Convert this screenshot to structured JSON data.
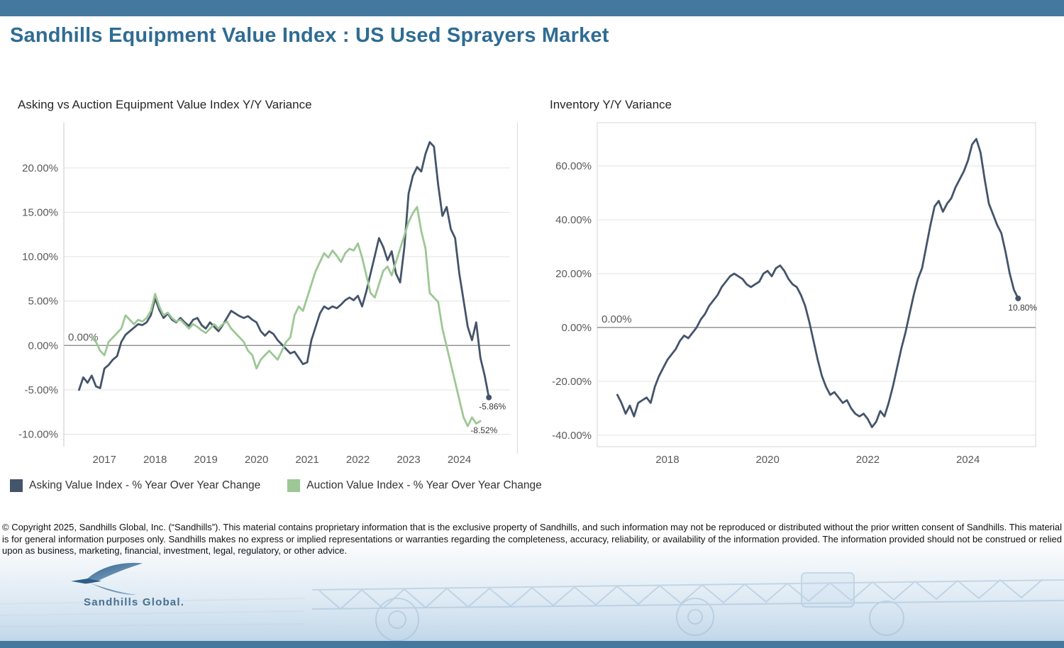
{
  "page": {
    "title": "Sandhills Equipment Value Index : US Used Sprayers Market"
  },
  "legend": [
    {
      "label": "Asking Value Index - % Year Over Year Change",
      "color": "#44546A"
    },
    {
      "label": "Auction Value Index - % Year Over Year Change",
      "color": "#9DC795"
    }
  ],
  "footer": {
    "copyright": "© Copyright 2025, Sandhills Global, Inc. (“Sandhills”). This material contains proprietary information that is the exclusive property of Sandhills, and such information may not be reproduced or distributed without the prior written consent of Sandhills. This material is for general information purposes only. Sandhills makes no express or implied representations or warranties regarding the completeness, accuracy, reliability, or availability of the information provided. The information provided should not be construed or relied upon as business, marketing, financial, investment, legal, regulatory, or other advice.",
    "logo_text": "Sandhills Global."
  },
  "chart_data": [
    {
      "type": "line",
      "title": "Asking vs Auction Equipment Value Index Y/Y Variance",
      "xlabel": "",
      "ylabel": "",
      "xlim": [
        2016.2,
        2025.0
      ],
      "ylim": [
        -11.4,
        25.1
      ],
      "grid": true,
      "border": false,
      "zero_label": "0.00%",
      "yticks": [
        20,
        15,
        10,
        5,
        0,
        -5,
        -10
      ],
      "ytick_labels": [
        "20.00%",
        "15.00%",
        "10.00%",
        "5.00%",
        "0.00%",
        "-5.00%",
        "-10.00%"
      ],
      "xticks": [
        2017,
        2018,
        2019,
        2020,
        2021,
        2022,
        2023,
        2024
      ],
      "xtick_labels": [
        "2017",
        "2018",
        "2019",
        "2020",
        "2021",
        "2022",
        "2023",
        "2024"
      ],
      "series": [
        {
          "name": "Asking Value Index - % Year Over Year Change",
          "slug": "asking-value-line",
          "color": "#44546A",
          "end_label": "-5.86%",
          "end_dot": true,
          "x_start": 2016.5,
          "x_step": 0.083333,
          "y": [
            -5.0,
            -3.6,
            -4.2,
            -3.4,
            -4.6,
            -4.8,
            -2.6,
            -2.2,
            -1.6,
            -1.2,
            0.4,
            1.2,
            1.6,
            2.0,
            2.4,
            2.3,
            2.6,
            3.4,
            5.3,
            4.0,
            3.1,
            3.6,
            2.9,
            2.6,
            3.1,
            2.6,
            2.2,
            2.9,
            3.1,
            2.3,
            1.9,
            2.6,
            2.1,
            1.6,
            2.3,
            3.1,
            3.9,
            3.6,
            3.3,
            3.1,
            3.3,
            2.9,
            2.6,
            1.6,
            1.1,
            1.6,
            1.3,
            0.6,
            0.1,
            -0.4,
            -0.9,
            -0.7,
            -1.4,
            -2.1,
            -1.9,
            0.6,
            2.1,
            3.6,
            4.4,
            4.1,
            4.4,
            4.2,
            4.6,
            5.1,
            5.4,
            5.1,
            5.6,
            4.4,
            6.1,
            8.1,
            10.1,
            12.1,
            11.1,
            9.6,
            10.6,
            8.1,
            7.1,
            11.1,
            17.1,
            19.1,
            20.1,
            19.6,
            21.6,
            22.9,
            22.4,
            18.1,
            14.6,
            15.6,
            13.1,
            12.1,
            8.1,
            5.1,
            2.1,
            0.6,
            2.6,
            -1.4,
            -3.4,
            -5.86
          ]
        },
        {
          "name": "Auction Value Index - % Year Over Year Change",
          "slug": "auction-value-line",
          "color": "#9DC795",
          "end_label": "-8.52%",
          "end_dot": false,
          "x_start": 2016.75,
          "x_step": 0.083333,
          "y": [
            0.9,
            0.4,
            -0.6,
            -1.1,
            0.4,
            0.9,
            1.4,
            1.9,
            3.4,
            2.9,
            2.4,
            2.9,
            2.7,
            3.1,
            3.9,
            5.8,
            4.4,
            3.4,
            3.7,
            3.1,
            2.7,
            2.9,
            2.4,
            1.9,
            2.4,
            2.1,
            1.7,
            1.4,
            1.9,
            2.4,
            1.9,
            2.4,
            2.7,
            1.9,
            1.4,
            0.9,
            0.4,
            -0.6,
            -1.1,
            -2.6,
            -1.6,
            -1.1,
            -0.6,
            -1.1,
            -1.6,
            -0.6,
            0.4,
            0.9,
            3.4,
            4.4,
            3.9,
            5.4,
            6.9,
            8.4,
            9.4,
            10.4,
            9.9,
            10.7,
            10.1,
            9.4,
            10.4,
            10.9,
            10.7,
            11.5,
            9.9,
            7.9,
            5.9,
            5.4,
            6.9,
            8.4,
            8.9,
            7.9,
            9.4,
            10.9,
            12.4,
            13.9,
            14.9,
            15.6,
            12.9,
            10.9,
            5.9,
            5.4,
            4.9,
            1.9,
            -0.1,
            -2.1,
            -4.1,
            -6.1,
            -8.1,
            -9.1,
            -8.1,
            -8.8,
            -8.52
          ]
        }
      ]
    },
    {
      "type": "line",
      "title": "Inventory Y/Y Variance",
      "xlabel": "",
      "ylabel": "",
      "xlim": [
        2016.6,
        2025.35
      ],
      "ylim": [
        -44.25,
        76.05
      ],
      "grid": true,
      "border": true,
      "zero_label": "0.00%",
      "yticks": [
        60,
        40,
        20,
        0,
        -20,
        -40
      ],
      "ytick_labels": [
        "60.00%",
        "40.00%",
        "20.00%",
        "0.00%",
        "-20.00%",
        "-40.00%"
      ],
      "xticks": [
        2018,
        2020,
        2022,
        2024
      ],
      "xtick_labels": [
        "2018",
        "2020",
        "2022",
        "2024"
      ],
      "series": [
        {
          "name": "Inventory Y/Y Variance",
          "slug": "inventory-line",
          "color": "#44546A",
          "end_label": "10.80%",
          "end_dot": true,
          "x_start": 2017.0,
          "x_step": 0.083333,
          "y": [
            -25,
            -28,
            -32,
            -29,
            -33,
            -28,
            -27,
            -26,
            -28,
            -22,
            -18,
            -15,
            -12,
            -10,
            -8,
            -5,
            -3,
            -4,
            -2,
            0,
            3,
            5,
            8,
            10,
            12,
            15,
            17,
            19,
            20,
            19,
            18,
            16,
            15,
            16,
            17,
            20,
            21,
            19,
            22,
            23,
            21,
            18,
            16,
            15,
            12,
            8,
            2,
            -5,
            -12,
            -18,
            -22,
            -25,
            -24,
            -26,
            -28,
            -27,
            -30,
            -32,
            -33,
            -32,
            -34,
            -37,
            -35,
            -31,
            -33,
            -28,
            -22,
            -15,
            -8,
            -2,
            5,
            12,
            18,
            22,
            30,
            38,
            45,
            47,
            43,
            46,
            48,
            52,
            55,
            58,
            62,
            68,
            70,
            65,
            55,
            46,
            42,
            38,
            35,
            28,
            20,
            14,
            10.8
          ]
        }
      ]
    }
  ]
}
